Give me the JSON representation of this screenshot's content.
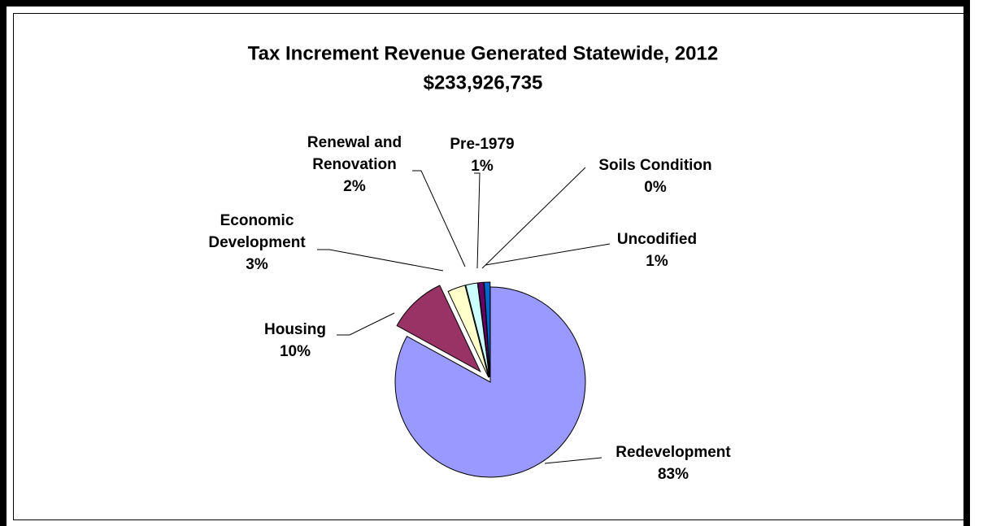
{
  "chart_data": {
    "type": "pie",
    "title": "Tax Increment Revenue Generated Statewide, 2012",
    "subtitle": "$233,926,735",
    "categories": [
      "Redevelopment",
      "Housing",
      "Economic Development",
      "Renewal and Renovation",
      "Pre-1979",
      "Soils Condition",
      "Uncodified"
    ],
    "values": [
      83,
      10,
      3,
      2,
      1,
      0,
      1
    ],
    "value_labels": [
      "83%",
      "10%",
      "3%",
      "2%",
      "1%",
      "0%",
      "1%"
    ],
    "colors": [
      "#9999ff",
      "#993366",
      "#ffffcc",
      "#ccffff",
      "#660066",
      "#ff8080",
      "#0066cc"
    ]
  }
}
